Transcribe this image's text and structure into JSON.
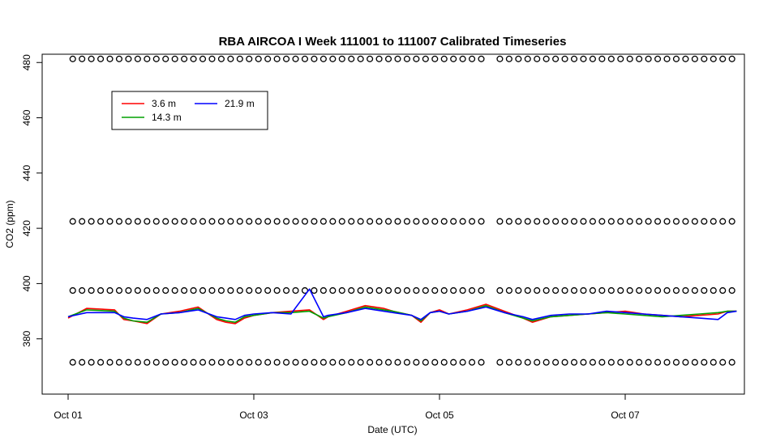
{
  "chart_data": {
    "type": "line",
    "title": "RBA AIRCOA I  Week 111001 to 111007  Calibrated Timeseries",
    "xlabel": "Date (UTC)",
    "ylabel": "CO2 (ppm)",
    "xlim": [
      0,
      7.3
    ],
    "ylim": [
      360,
      483
    ],
    "x_ticks": [
      {
        "value": 0,
        "label": "Oct 01"
      },
      {
        "value": 2,
        "label": "Oct 03"
      },
      {
        "value": 4,
        "label": "Oct 05"
      },
      {
        "value": 6,
        "label": "Oct 07"
      }
    ],
    "y_ticks": [
      380,
      400,
      420,
      440,
      460,
      480
    ],
    "grid": false,
    "legend": {
      "placement": "top-left",
      "entries": [
        {
          "name": "3.6 m",
          "color": "#ff0000"
        },
        {
          "name": "14.3 m",
          "color": "#00a000"
        },
        {
          "name": "21.9 m",
          "color": "#0000ff"
        }
      ]
    },
    "calibration_levels": [
      {
        "value": 371.5
      },
      {
        "value": 397.5
      },
      {
        "value": 422.5
      },
      {
        "value": 481.3
      }
    ],
    "calibration_gap": [
      4.5,
      4.62
    ],
    "series": [
      {
        "name": "3.6 m",
        "color": "#ff0000",
        "x": [
          0,
          0.2,
          0.5,
          0.6,
          0.7,
          0.85,
          1.0,
          1.2,
          1.4,
          1.6,
          1.7,
          1.8,
          1.9,
          2.0,
          2.2,
          2.4,
          2.6,
          2.75,
          2.8,
          3.0,
          3.2,
          3.4,
          3.5,
          3.7,
          3.8,
          3.9,
          4.0,
          4.1,
          4.3,
          4.5,
          4.7,
          4.9,
          5.0,
          5.2,
          5.4,
          5.6,
          5.8,
          6.0,
          6.2,
          6.4,
          6.6,
          6.8,
          7.0,
          7.1,
          7.2
        ],
        "y": [
          387.5,
          391.0,
          390.5,
          387.0,
          386.5,
          385.5,
          389.0,
          390.0,
          391.5,
          387.0,
          386.0,
          385.5,
          387.5,
          388.5,
          389.5,
          390.0,
          390.5,
          387.0,
          388.0,
          390.0,
          392.0,
          391.0,
          390.0,
          388.5,
          386.0,
          389.5,
          390.5,
          389.0,
          390.5,
          392.5,
          390.0,
          387.5,
          386.0,
          388.0,
          388.5,
          389.0,
          389.5,
          390.0,
          389.0,
          388.5,
          388.0,
          388.5,
          389.0,
          390.0,
          390.0
        ]
      },
      {
        "name": "14.3 m",
        "color": "#00a000",
        "x": [
          0,
          0.2,
          0.5,
          0.6,
          0.7,
          0.85,
          1.0,
          1.2,
          1.4,
          1.6,
          1.7,
          1.8,
          1.9,
          2.0,
          2.2,
          2.4,
          2.6,
          2.75,
          2.8,
          3.0,
          3.2,
          3.4,
          3.5,
          3.7,
          3.8,
          3.9,
          4.0,
          4.1,
          4.3,
          4.5,
          4.7,
          4.9,
          5.0,
          5.2,
          5.4,
          5.6,
          5.8,
          6.0,
          6.2,
          6.4,
          6.6,
          6.8,
          7.0,
          7.1,
          7.2
        ],
        "y": [
          388.0,
          390.5,
          390.0,
          387.5,
          386.5,
          386.0,
          389.0,
          389.5,
          391.0,
          387.5,
          386.5,
          386.0,
          388.0,
          388.5,
          389.5,
          389.5,
          390.0,
          387.5,
          388.0,
          389.5,
          391.5,
          390.5,
          390.0,
          388.5,
          386.5,
          389.5,
          390.0,
          389.0,
          390.0,
          392.0,
          389.5,
          387.5,
          386.5,
          388.0,
          388.5,
          389.0,
          389.5,
          389.0,
          388.5,
          388.0,
          388.5,
          389.0,
          389.5,
          390.0,
          390.0
        ]
      },
      {
        "name": "21.9 m",
        "color": "#0000ff",
        "x": [
          0,
          0.2,
          0.5,
          0.6,
          0.7,
          0.85,
          1.0,
          1.2,
          1.4,
          1.6,
          1.7,
          1.8,
          1.9,
          2.0,
          2.2,
          2.4,
          2.6,
          2.75,
          2.8,
          3.0,
          3.2,
          3.4,
          3.5,
          3.7,
          3.8,
          3.9,
          4.0,
          4.1,
          4.3,
          4.5,
          4.7,
          4.9,
          5.0,
          5.2,
          5.4,
          5.6,
          5.8,
          6.0,
          6.2,
          6.4,
          6.6,
          6.8,
          7.0,
          7.1,
          7.2
        ],
        "y": [
          388.0,
          389.5,
          389.5,
          388.0,
          387.5,
          387.0,
          389.0,
          389.5,
          390.5,
          388.0,
          387.5,
          387.0,
          388.5,
          389.0,
          389.5,
          389.0,
          398.0,
          388.0,
          388.5,
          389.5,
          391.0,
          390.0,
          389.5,
          388.5,
          387.0,
          389.5,
          390.0,
          389.0,
          390.0,
          391.5,
          389.5,
          388.0,
          387.0,
          388.5,
          389.0,
          389.0,
          390.0,
          389.5,
          389.0,
          388.5,
          388.0,
          387.5,
          387.0,
          389.5,
          390.0
        ]
      }
    ]
  }
}
